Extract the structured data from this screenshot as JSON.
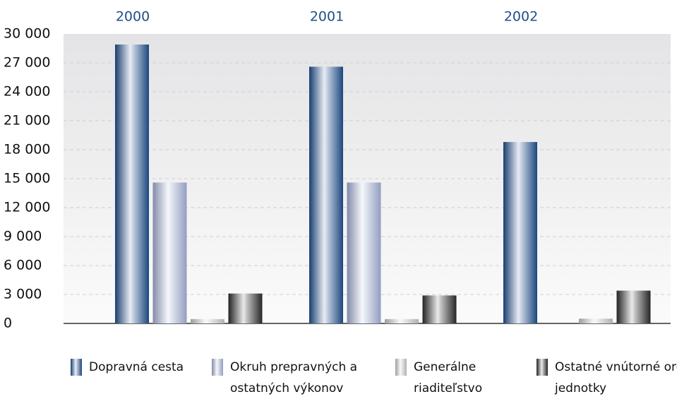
{
  "chart_data": {
    "type": "bar",
    "categories": [
      "2000",
      "2001",
      "2002"
    ],
    "series": [
      {
        "name": "Dopravná cesta",
        "color": "#1f4e8c",
        "values": [
          28900,
          26600,
          18800
        ]
      },
      {
        "name": "Okruh prepravných a ostatných výkonov",
        "color": "#a3aed3",
        "values": [
          14600,
          14600,
          null
        ]
      },
      {
        "name": "Generálne riaditeľstvo",
        "color": "#c4c4c4",
        "values": [
          450,
          450,
          500
        ]
      },
      {
        "name": "Ostatné vnútorné org. jednotky",
        "color": "#2a2a2a",
        "values": [
          3100,
          2900,
          3400
        ]
      }
    ],
    "ylim": [
      0,
      30000
    ],
    "yticks": [
      0,
      {
        "value": 3000,
        "label": "3 000"
      },
      {
        "value": 6000,
        "label": "6 000"
      },
      {
        "value": 9000,
        "label": "9 000"
      },
      {
        "value": 12000,
        "label": "12 000"
      },
      {
        "value": 15000,
        "label": "15 000"
      },
      {
        "value": 18000,
        "label": "18 000"
      },
      {
        "value": 21000,
        "label": "21 000"
      },
      {
        "value": 24000,
        "label": "24 000"
      },
      {
        "value": 27000,
        "label": "27 000"
      },
      {
        "value": 30000,
        "label": "30 000"
      }
    ],
    "grid": true
  }
}
